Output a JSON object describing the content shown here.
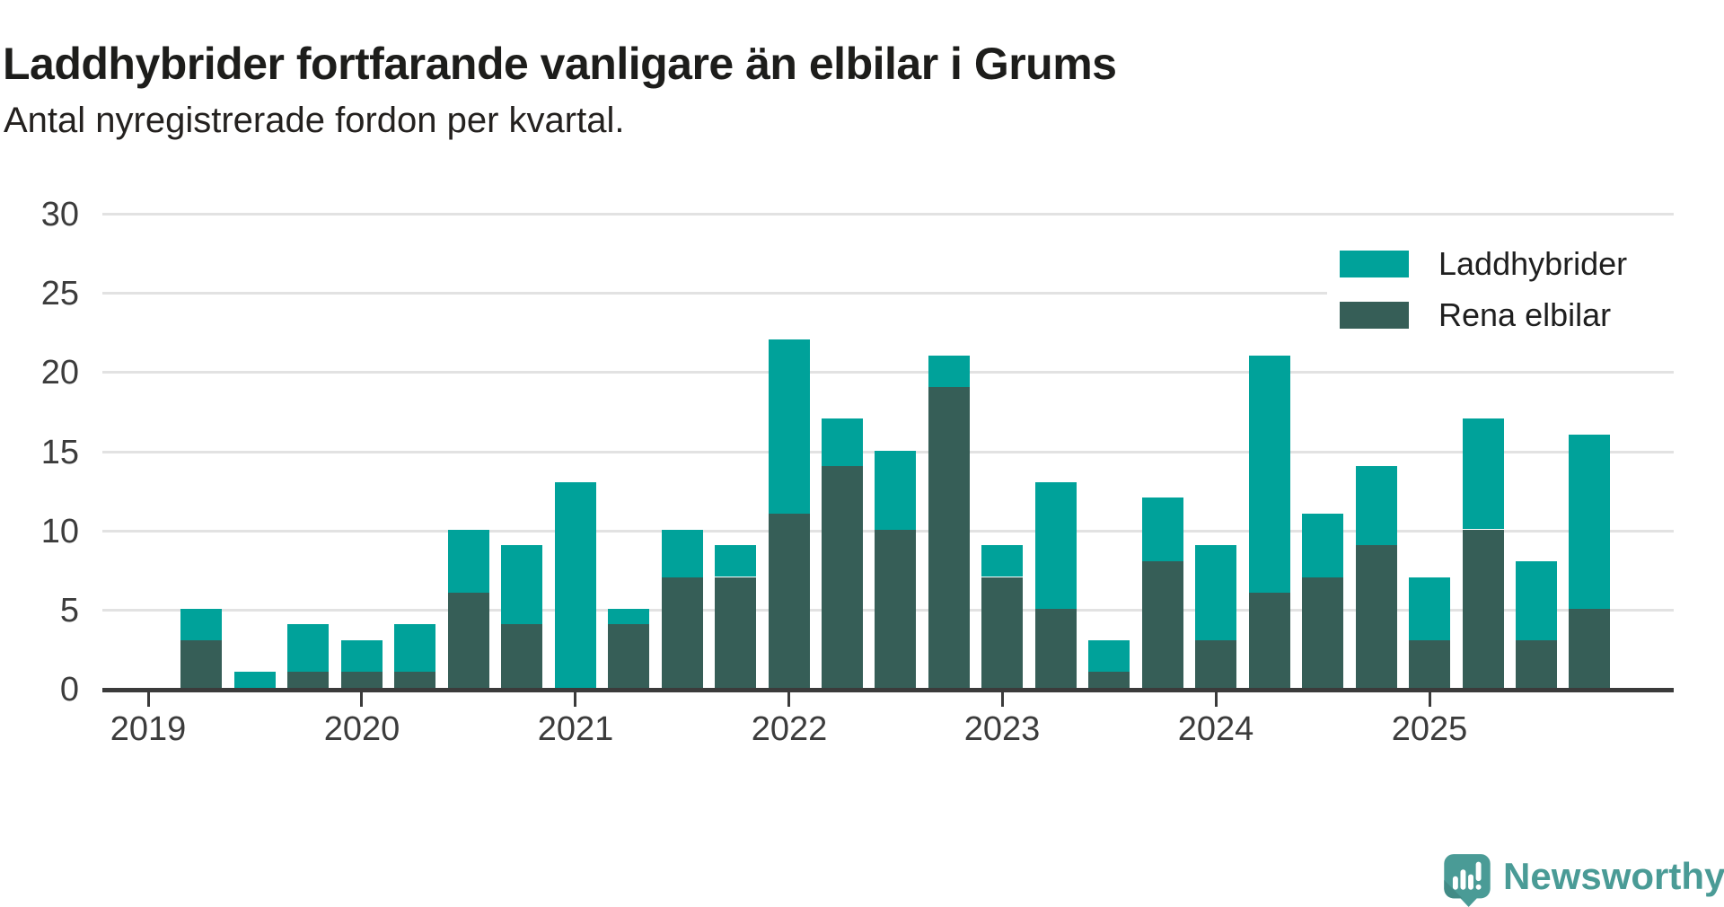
{
  "chart_data": {
    "type": "bar",
    "stacked": true,
    "title": "Laddhybrider fortfarande vanligare än elbilar i Grums",
    "subtitle": "Antal nyregistrerade fordon per kvartal.",
    "quarters": [
      "2019 Q1",
      "2019 Q2",
      "2019 Q3",
      "2019 Q4",
      "2020 Q1",
      "2020 Q2",
      "2020 Q3",
      "2020 Q4",
      "2021 Q1",
      "2021 Q2",
      "2021 Q3",
      "2021 Q4",
      "2022 Q1",
      "2022 Q2",
      "2022 Q3",
      "2022 Q4",
      "2023 Q1",
      "2023 Q2",
      "2023 Q3",
      "2023 Q4",
      "2024 Q1",
      "2024 Q2",
      "2024 Q3",
      "2024 Q4",
      "2025 Q1",
      "2025 Q2",
      "2025 Q3",
      "2025 Q4"
    ],
    "series": [
      {
        "name": "Laddhybrider",
        "color": "#00a29a",
        "values": [
          0,
          2,
          1,
          3,
          2,
          3,
          4,
          5,
          13,
          1,
          3,
          2,
          11,
          3,
          5,
          2,
          2,
          8,
          2,
          4,
          6,
          15,
          4,
          5,
          4,
          7,
          5,
          11
        ]
      },
      {
        "name": "Rena elbilar",
        "color": "#365e57",
        "values": [
          0,
          3,
          0,
          1,
          1,
          1,
          6,
          4,
          0,
          4,
          7,
          7,
          11,
          14,
          10,
          19,
          7,
          5,
          1,
          8,
          3,
          6,
          7,
          9,
          3,
          10,
          3,
          5
        ]
      }
    ],
    "stack_order_bottom_to_top": [
      "Rena elbilar",
      "Laddhybrider"
    ],
    "totals": [
      0,
      5,
      1,
      4,
      3,
      4,
      10,
      9,
      13,
      5,
      10,
      9,
      22,
      17,
      15,
      21,
      9,
      13,
      3,
      12,
      9,
      21,
      11,
      14,
      7,
      17,
      8,
      16
    ],
    "ylim": [
      0,
      30
    ],
    "yticks": [
      0,
      5,
      10,
      15,
      20,
      25,
      30
    ],
    "x_tick_labels": [
      "2019",
      "2020",
      "2021",
      "2022",
      "2023",
      "2024",
      "2025"
    ],
    "x_tick_quarter_index": [
      0,
      4,
      8,
      12,
      16,
      20,
      24
    ],
    "grid": "horizontal",
    "legend_position": "top-right"
  },
  "colors": {
    "laddhybrider": "#00a29a",
    "rena_elbilar": "#365e57",
    "gridline": "#e2e2e2",
    "axis": "#3b3b3b",
    "logo": "#4a9b96"
  },
  "footer": {
    "brand": "Newsworthy"
  }
}
